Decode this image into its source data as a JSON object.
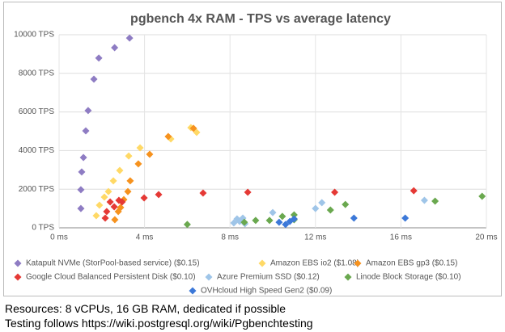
{
  "chart_data": {
    "type": "scatter",
    "title": "pgbench 4x RAM - TPS vs average latency",
    "xlim": [
      0,
      20
    ],
    "ylim": [
      0,
      10000
    ],
    "xticks": [
      {
        "value": 0,
        "label": "0 ms"
      },
      {
        "value": 4,
        "label": "4 ms"
      },
      {
        "value": 8,
        "label": "8 ms"
      },
      {
        "value": 12,
        "label": "12 ms"
      },
      {
        "value": 16,
        "label": "16 ms"
      },
      {
        "value": 20,
        "label": "20 ms"
      }
    ],
    "yticks": [
      {
        "value": 0,
        "label": "0 TPS"
      },
      {
        "value": 2000,
        "label": "2000 TPS"
      },
      {
        "value": 4000,
        "label": "4000 TPS"
      },
      {
        "value": 6000,
        "label": "6000 TPS"
      },
      {
        "value": 8000,
        "label": "8000 TPS"
      },
      {
        "value": 10000,
        "label": "10000 TPS"
      }
    ],
    "grid": true,
    "legend": "bottom",
    "series": [
      {
        "name": "Katapult NVMe (StorPool-based service) ($0.15)",
        "color": "#8e7cc3",
        "x": [
          3.3,
          2.6,
          1.86,
          1.63,
          1.36,
          1.25,
          1.14,
          1.06,
          1.02,
          1.02
        ],
        "values": [
          9830,
          9330,
          8790,
          7700,
          6070,
          5020,
          3640,
          2890,
          1970,
          1000
        ]
      },
      {
        "name": "Amazon EBS io2 ($1.08)",
        "color": "#ffd966",
        "x": [
          6.44,
          6.17,
          5.23,
          3.79,
          3.26,
          2.84,
          2.54,
          2.31,
          2.12,
          1.89,
          1.74
        ],
        "values": [
          4940,
          5190,
          4600,
          4140,
          3720,
          2970,
          2430,
          1880,
          1590,
          1170,
          630
        ]
      },
      {
        "name": "Amazon EBS gp3 ($0.15)",
        "color": "#f6921e",
        "x": [
          6.29,
          5.11,
          4.24,
          3.71,
          3.33,
          3.22,
          3.03,
          2.88,
          2.77,
          2.61
        ],
        "values": [
          5150,
          4730,
          3810,
          3310,
          2430,
          1880,
          1460,
          1050,
          840,
          420
        ]
      },
      {
        "name": "Google Cloud Balanced Persistent Disk ($0.10)",
        "color": "#e53935",
        "x": [
          2.23,
          2.39,
          2.8,
          2.95,
          3.98,
          4.66,
          6.74,
          8.83,
          12.9,
          16.6,
          2.58,
          2.16
        ],
        "values": [
          840,
          1340,
          1420,
          1340,
          1550,
          1720,
          1800,
          1840,
          1840,
          1920,
          1090,
          500
        ]
      },
      {
        "name": "Azure Premium SSD ($0.12)",
        "color": "#9fc5e8",
        "x": [
          8.18,
          8.33,
          8.6,
          8.7,
          10.0,
          12.0,
          12.3,
          17.1,
          8.45
        ],
        "values": [
          250,
          460,
          500,
          210,
          790,
          1000,
          1300,
          1420,
          330
        ]
      },
      {
        "name": "Linode Block Storage ($0.10)",
        "color": "#6aa84f",
        "x": [
          6.0,
          8.67,
          9.2,
          9.85,
          10.45,
          11.0,
          12.7,
          13.4,
          17.6,
          19.8,
          11.0
        ],
        "values": [
          170,
          290,
          380,
          380,
          590,
          670,
          920,
          1210,
          1380,
          1630,
          420
        ]
      },
      {
        "name": "OVHcloud High Speed Gen2 ($0.09)",
        "color": "#3c78d8",
        "x": [
          10.3,
          10.6,
          10.8,
          11.0,
          13.8,
          16.2
        ],
        "values": [
          290,
          170,
          330,
          460,
          500,
          500
        ]
      }
    ]
  },
  "footer": [
    "Resources: 8 vCPUs, 16 GB RAM, dedicated if possible",
    "Testing follows https://wiki.postgresql.org/wiki/Pgbenchtesting"
  ]
}
